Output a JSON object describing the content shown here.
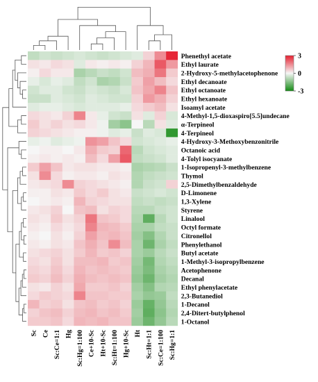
{
  "chart_data": {
    "type": "heatmap",
    "columns": [
      "Sc",
      "Ce",
      "Sc:Ce=1:1",
      "Hg",
      "Sc:Hg=1:100",
      "Ce+10-Sc",
      "Ht+10-Sc",
      "Sc:Ht=1:100",
      "Hg+10-Sc",
      "Ht",
      "Sc:Ht=1:1",
      "Sc:Ce=1:100",
      "Sc:Hg=1:1"
    ],
    "rows": [
      "Phenethyl acetate",
      "Ethyl laurate",
      "2-Hydroxy-5-methylacetophenone",
      "Ethyl decanoate",
      "Ethyl octanoate",
      "Ethyl hexanoate",
      "Isoamyl acetate",
      "4-Methyl-1,5-dioxaspiro[5.5]undecane",
      "α-Terpineol",
      "4-Terpineol",
      "4-Hydroxy-3-Methoxybenzonitrile",
      "Octanoic acid",
      "4-Tolyl isocyanate",
      "1-Isopropenyl-3-methylbenzene",
      "Thymol",
      "2,5-Dimethylbenzaldehyde",
      "D-Limonene",
      "1,3-Xylene",
      "Styrene",
      "Linalool",
      "Octyl formate",
      "Citronellol",
      "Phenylethanol",
      "Butyl acetate",
      "1-Methyl-3-isopropylbenzene",
      "Acetophenone",
      "Decanal",
      "Ethyl phenylacetate",
      "2,3-Butanediol",
      "1-Decanol",
      "2,4-Ditert-butylphenol",
      "1-Octanol"
    ],
    "values": [
      [
        -0.7,
        -0.5,
        -0.6,
        -0.5,
        -0.4,
        -0.5,
        -0.6,
        -0.5,
        -0.4,
        -0.3,
        0.5,
        1.5,
        2.9
      ],
      [
        0.3,
        0.2,
        0.4,
        0.3,
        -0.3,
        0.2,
        0.1,
        0.2,
        0.1,
        0.5,
        0.9,
        2.2,
        1.3
      ],
      [
        0.1,
        0.4,
        0.2,
        0.2,
        -1.0,
        -0.8,
        -0.6,
        -0.7,
        -0.5,
        0.8,
        1.0,
        1.8,
        0.6
      ],
      [
        -0.2,
        -0.4,
        -0.2,
        -0.3,
        -0.7,
        -0.5,
        -1.0,
        -0.9,
        -0.6,
        0.6,
        1.2,
        0.8,
        0.4
      ],
      [
        -0.5,
        -0.3,
        -0.3,
        -0.5,
        -0.6,
        -0.4,
        -0.5,
        -0.6,
        -0.4,
        0.7,
        1.1,
        1.6,
        0.7
      ],
      [
        -0.6,
        -0.6,
        -0.3,
        -0.4,
        -0.5,
        -0.3,
        -0.4,
        -0.5,
        -0.5,
        0.5,
        1.3,
        1.0,
        0.5
      ],
      [
        -0.3,
        -0.2,
        -0.2,
        -0.3,
        -0.4,
        -0.3,
        -0.3,
        -0.3,
        -0.2,
        0.4,
        0.6,
        0.8,
        0.3
      ],
      [
        0.4,
        0.3,
        0.2,
        0.5,
        1.6,
        0.2,
        -0.2,
        -0.5,
        -0.6,
        0.3,
        -0.3,
        0.5,
        -0.4
      ],
      [
        0.6,
        0.3,
        0.5,
        0.3,
        0.4,
        0.2,
        -0.1,
        -1.1,
        -1.4,
        0.0,
        -0.8,
        0.3,
        -0.3
      ],
      [
        0.5,
        0.4,
        0.3,
        0.2,
        0.1,
        0.1,
        -0.1,
        -0.3,
        -0.2,
        -0.6,
        -0.3,
        -0.4,
        -2.6
      ],
      [
        -0.2,
        -0.1,
        -0.3,
        -0.2,
        -0.1,
        1.4,
        1.2,
        0.7,
        0.4,
        -0.5,
        -0.4,
        -0.3,
        -0.2
      ],
      [
        0.0,
        0.1,
        0.1,
        0.0,
        0.2,
        1.0,
        0.6,
        0.5,
        2.0,
        -0.8,
        -0.5,
        -0.4,
        -0.3
      ],
      [
        0.1,
        0.2,
        0.1,
        0.2,
        0.1,
        0.8,
        0.4,
        1.2,
        2.2,
        -0.7,
        -0.6,
        -0.5,
        -0.3
      ],
      [
        0.6,
        1.2,
        0.7,
        0.2,
        0.3,
        0.3,
        0.2,
        0.2,
        0.1,
        -1.0,
        -0.9,
        -0.8,
        -0.6
      ],
      [
        0.3,
        1.5,
        0.4,
        0.1,
        0.2,
        0.2,
        0.1,
        0.3,
        0.2,
        -0.9,
        -0.7,
        -0.6,
        -0.5
      ],
      [
        0.2,
        0.3,
        0.4,
        1.5,
        0.5,
        0.4,
        0.3,
        0.2,
        0.1,
        -0.9,
        -0.6,
        -0.5,
        0.5
      ],
      [
        0.1,
        0.1,
        0.3,
        0.2,
        0.6,
        0.4,
        0.6,
        0.3,
        0.2,
        -0.6,
        -0.5,
        -0.4,
        -0.5
      ],
      [
        0.0,
        0.1,
        0.2,
        0.1,
        0.9,
        0.5,
        0.4,
        0.3,
        0.3,
        -0.7,
        -0.6,
        -0.7,
        -0.6
      ],
      [
        0.2,
        0.3,
        0.5,
        0.0,
        0.7,
        0.8,
        0.3,
        0.5,
        0.4,
        -0.8,
        -0.8,
        -0.6,
        -0.5
      ],
      [
        0.3,
        0.2,
        0.6,
        0.3,
        0.5,
        1.8,
        0.7,
        0.6,
        0.4,
        -0.9,
        -2.0,
        -0.8,
        -0.5
      ],
      [
        0.2,
        0.1,
        0.4,
        0.2,
        0.4,
        1.6,
        0.9,
        0.8,
        0.6,
        -1.0,
        -1.0,
        -0.7,
        -0.6
      ],
      [
        0.1,
        0.0,
        0.3,
        0.1,
        0.5,
        1.2,
        0.8,
        0.9,
        0.7,
        -1.1,
        -1.5,
        -0.9,
        -0.6
      ],
      [
        0.2,
        0.1,
        0.3,
        0.2,
        0.7,
        1.0,
        0.7,
        1.5,
        0.8,
        -1.0,
        -1.8,
        -1.0,
        -0.7
      ],
      [
        0.3,
        0.4,
        0.5,
        0.3,
        0.6,
        0.9,
        0.6,
        0.7,
        0.5,
        -1.0,
        -1.2,
        -0.8,
        -0.6
      ],
      [
        0.4,
        0.3,
        0.6,
        0.3,
        0.8,
        0.8,
        0.9,
        0.6,
        0.7,
        -1.1,
        -1.7,
        -0.9,
        -0.7
      ],
      [
        0.5,
        0.4,
        0.7,
        0.4,
        0.9,
        0.7,
        0.8,
        0.7,
        0.6,
        -1.2,
        -1.6,
        -1.0,
        -0.8
      ],
      [
        0.6,
        0.5,
        0.8,
        0.5,
        1.0,
        0.8,
        0.7,
        0.8,
        0.7,
        -1.3,
        -1.8,
        -1.1,
        -0.9
      ],
      [
        0.3,
        0.2,
        0.5,
        0.3,
        1.1,
        0.6,
        0.6,
        0.7,
        0.5,
        -1.1,
        -1.5,
        -0.9,
        -0.8
      ],
      [
        0.4,
        0.6,
        0.5,
        0.4,
        1.6,
        0.7,
        0.7,
        0.6,
        0.6,
        -1.0,
        -1.3,
        -1.2,
        -0.7
      ],
      [
        0.9,
        0.5,
        0.6,
        0.3,
        0.7,
        0.8,
        0.6,
        0.7,
        0.5,
        -1.2,
        -1.9,
        -1.3,
        -0.8
      ],
      [
        0.5,
        0.7,
        0.8,
        0.5,
        0.8,
        0.9,
        0.7,
        0.8,
        0.6,
        -1.1,
        -2.0,
        -1.4,
        -0.9
      ],
      [
        0.6,
        0.6,
        0.7,
        0.4,
        0.9,
        0.8,
        0.9,
        0.7,
        0.7,
        -1.2,
        -1.8,
        -1.3,
        -0.8
      ]
    ],
    "color_scale": {
      "min": -3,
      "mid": 0,
      "max": 3,
      "min_color": "#138a13",
      "mid_color": "#f6f6f6",
      "max_color": "#e52030",
      "ticks": [
        "3",
        "0",
        "-3"
      ]
    },
    "row_dendrogram": "left",
    "column_dendrogram": "top",
    "legend_position": "top-right",
    "grid": false
  }
}
